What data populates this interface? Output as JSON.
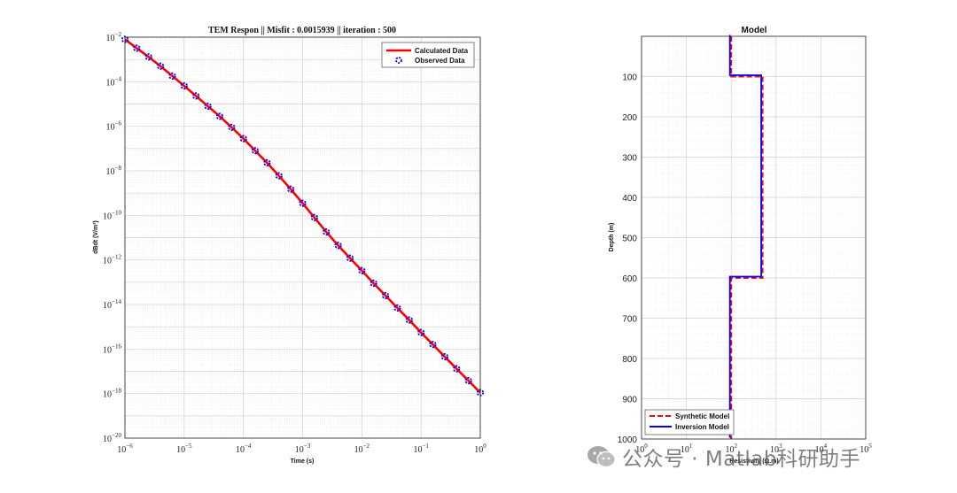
{
  "left_chart": {
    "chart_data": {
      "type": "line",
      "title": "TEM Respon  || Misfit : 0.0015939 || iteration : 500",
      "xlabel": "Time (s)",
      "ylabel": "dBdt (V/m²)",
      "xscale": "log",
      "yscale": "log",
      "xlim": [
        1e-06,
        1
      ],
      "ylim": [
        1e-20,
        0.01
      ],
      "x_tick_exponents": [
        -6,
        -5,
        -4,
        -3,
        -2,
        -1,
        0
      ],
      "y_tick_exponents": [
        -20,
        -18,
        -16,
        -14,
        -12,
        -10,
        -8,
        -6,
        -4,
        -2
      ],
      "grid": true,
      "legend_position": "top-right",
      "series": [
        {
          "name": "Calculated Data",
          "style": "line",
          "color": "#ff0000",
          "x": [
            1e-06,
            1.58e-06,
            2.51e-06,
            3.98e-06,
            6.31e-06,
            1e-05,
            1.58e-05,
            2.51e-05,
            3.98e-05,
            6.31e-05,
            0.0001,
            0.000158,
            0.000251,
            0.000398,
            0.000631,
            0.001,
            0.00158,
            0.00251,
            0.00398,
            0.00631,
            0.01,
            0.0158,
            0.0251,
            0.0398,
            0.0631,
            0.1,
            0.158,
            0.251,
            0.398,
            0.631,
            1
          ],
          "y": [
            0.008,
            0.0032,
            0.0013,
            0.0005,
            0.00018,
            6.5e-05,
            2.3e-05,
            8e-06,
            2.8e-06,
            9e-07,
            2.8e-07,
            8e-08,
            2.3e-08,
            6e-09,
            1.5e-09,
            3.5e-10,
            8e-11,
            1.8e-11,
            4.5e-12,
            1.2e-12,
            3.3e-13,
            9e-14,
            2.5e-14,
            7e-15,
            2e-15,
            5.5e-16,
            1.6e-16,
            4.5e-17,
            1.3e-17,
            3.8e-18,
            1.1e-18
          ]
        },
        {
          "name": "Observed Data",
          "style": "marker",
          "color": "#0000ff",
          "x": [
            1e-06,
            1.58e-06,
            2.51e-06,
            3.98e-06,
            6.31e-06,
            1e-05,
            1.58e-05,
            2.51e-05,
            3.98e-05,
            6.31e-05,
            0.0001,
            0.000158,
            0.000251,
            0.000398,
            0.000631,
            0.001,
            0.00158,
            0.00251,
            0.00398,
            0.00631,
            0.01,
            0.0158,
            0.0251,
            0.0398,
            0.0631,
            0.1,
            0.158,
            0.251,
            0.398,
            0.631,
            1
          ],
          "y": [
            0.008,
            0.0032,
            0.0013,
            0.0005,
            0.00018,
            6.5e-05,
            2.3e-05,
            8e-06,
            2.8e-06,
            9e-07,
            2.8e-07,
            8e-08,
            2.3e-08,
            6e-09,
            1.5e-09,
            3.5e-10,
            8e-11,
            1.8e-11,
            4.5e-12,
            1.2e-12,
            3.3e-13,
            9e-14,
            2.5e-14,
            7e-15,
            2e-15,
            5.5e-16,
            1.6e-16,
            4.5e-17,
            1.3e-17,
            3.8e-18,
            1.1e-18
          ]
        }
      ]
    }
  },
  "right_chart": {
    "chart_data": {
      "type": "line",
      "title": "Model",
      "xlabel": "Resistivity (Ω.m)",
      "ylabel": "Depth (m)",
      "xscale": "log",
      "xlim": [
        1,
        100000
      ],
      "ylim": [
        0,
        1000
      ],
      "y_reversed": true,
      "x_tick_exponents": [
        0,
        1,
        2,
        3,
        4,
        5
      ],
      "y_ticks": [
        100,
        200,
        300,
        400,
        500,
        600,
        700,
        800,
        900,
        1000
      ],
      "grid": true,
      "legend_position": "bottom-left",
      "series": [
        {
          "name": "Synthetic Model",
          "style": "dashed",
          "color": "#ff0000",
          "resistivity": [
            100,
            100,
            500,
            500,
            100,
            100
          ],
          "depth": [
            0,
            100,
            100,
            600,
            600,
            1000
          ]
        },
        {
          "name": "Inversion Model",
          "style": "line",
          "color": "#0000ff",
          "resistivity": [
            100,
            100,
            500,
            500,
            100,
            100
          ],
          "depth": [
            0,
            100,
            100,
            600,
            600,
            1000
          ]
        }
      ]
    }
  },
  "watermark": {
    "text": "公众号 · Matlab科研助手"
  }
}
